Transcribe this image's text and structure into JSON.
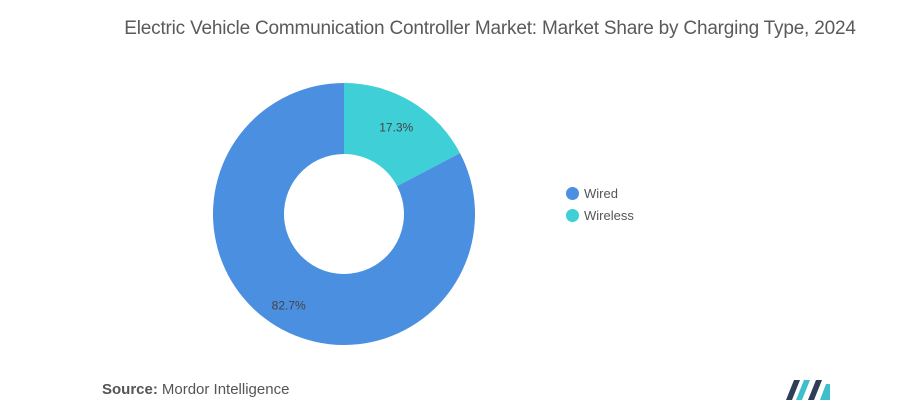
{
  "chart_data": {
    "type": "pie",
    "title": "Electric Vehicle Communication Controller Market: Market Share by Charging Type, 2024",
    "categories": [
      "Wired",
      "Wireless"
    ],
    "values": [
      82.7,
      17.3
    ],
    "labels": [
      "82.7%",
      "17.3%"
    ],
    "colors": [
      "#4a8fe0",
      "#3fcfd6"
    ],
    "donut": true,
    "legend_position": "right"
  },
  "source": {
    "label": "Source:",
    "text": "Mordor Intelligence"
  }
}
